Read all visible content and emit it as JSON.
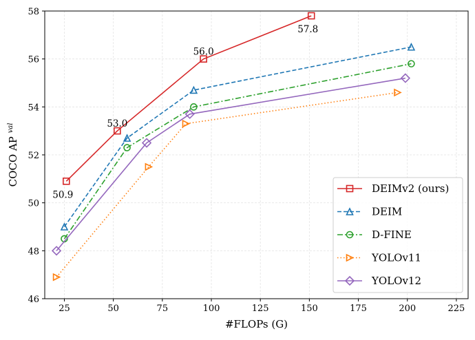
{
  "chart_data": {
    "type": "line",
    "title": "",
    "xlabel": "#FLOPs (G)",
    "ylabel": "COCO AP",
    "ylabel_superscript": "val",
    "xlim": [
      15,
      231
    ],
    "ylim": [
      46,
      58
    ],
    "xticks": [
      25,
      50,
      75,
      100,
      125,
      150,
      175,
      200,
      225
    ],
    "yticks": [
      46,
      48,
      50,
      52,
      54,
      56,
      58
    ],
    "grid": true,
    "legend_position": "bottom-right",
    "series": [
      {
        "name": "DEIMv2 (ours)",
        "color": "#d62728",
        "linestyle": "solid",
        "marker": "square",
        "x": [
          26,
          52,
          96,
          151
        ],
        "y": [
          50.9,
          53.0,
          56.0,
          57.8
        ]
      },
      {
        "name": "DEIM",
        "color": "#1f77b4",
        "linestyle": "dashed",
        "marker": "triangle-up",
        "x": [
          25,
          57,
          91,
          202
        ],
        "y": [
          49.0,
          52.7,
          54.7,
          56.5
        ]
      },
      {
        "name": "D-FINE",
        "color": "#2ca02c",
        "linestyle": "dashdot",
        "marker": "circle",
        "x": [
          25,
          57,
          91,
          202
        ],
        "y": [
          48.5,
          52.3,
          54.0,
          55.8
        ]
      },
      {
        "name": "YOLOv11",
        "color": "#ff7f0e",
        "linestyle": "dotted",
        "marker": "triangle-right",
        "x": [
          21,
          68,
          87,
          195
        ],
        "y": [
          46.9,
          51.5,
          53.3,
          54.6
        ]
      },
      {
        "name": "YOLOv12",
        "color": "#9467bd",
        "linestyle": "solid",
        "marker": "diamond",
        "x": [
          21,
          67,
          89,
          199
        ],
        "y": [
          48.0,
          52.5,
          53.7,
          55.2
        ]
      }
    ],
    "annotations": [
      {
        "text": "50.9",
        "x": 26,
        "y": 50.9,
        "placement": "below"
      },
      {
        "text": "53.0",
        "x": 52,
        "y": 53.0,
        "placement": "above"
      },
      {
        "text": "56.0",
        "x": 96,
        "y": 56.0,
        "placement": "above"
      },
      {
        "text": "57.8",
        "x": 151,
        "y": 57.8,
        "placement": "below"
      }
    ]
  }
}
